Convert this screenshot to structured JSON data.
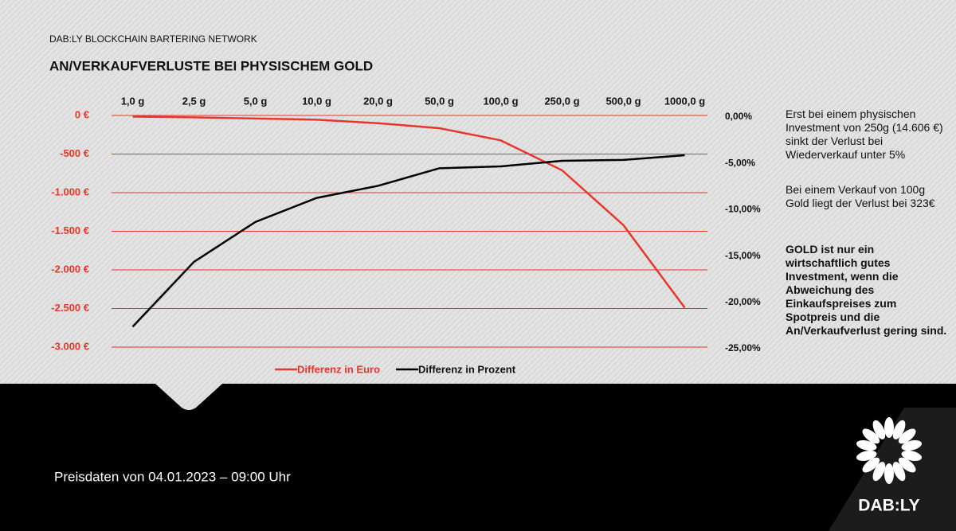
{
  "header": {
    "brand": "DAB:LY BLOCKCHAIN BARTERING NETWORK"
  },
  "chart_data": {
    "type": "line",
    "title": "AN/VERKAUFVERLUSTE BEI PHYSISCHEM GOLD",
    "categories": [
      "1,0 g",
      "2,5 g",
      "5,0 g",
      "10,0 g",
      "20,0 g",
      "50,0 g",
      "100,0 g",
      "250,0 g",
      "500,0 g",
      "1000,0 g"
    ],
    "series": [
      {
        "name": "Differenz in Euro",
        "color": "#e8372a",
        "values": [
          -15,
          -25,
          -40,
          -55,
          -100,
          -165,
          -323,
          -710,
          -1420,
          -2490
        ]
      },
      {
        "name": "Differenz in Prozent",
        "color": "#000000",
        "axis": "y2",
        "values": [
          -22.8,
          -15.8,
          -11.5,
          -8.9,
          -7.6,
          -5.7,
          -5.5,
          -4.9,
          -4.8,
          -4.3
        ]
      }
    ],
    "ylim": [
      -3000,
      0
    ],
    "yticks": [
      {
        "value": 0,
        "label": "0 €"
      },
      {
        "value": -500,
        "label": "-500 €"
      },
      {
        "value": -1000,
        "label": "-1.000 €"
      },
      {
        "value": -1500,
        "label": "-1.500 €"
      },
      {
        "value": -2000,
        "label": "-2.000 €"
      },
      {
        "value": -2500,
        "label": "-2.500 €"
      },
      {
        "value": -3000,
        "label": "-3.000 €"
      }
    ],
    "y2lim": [
      -25,
      0
    ],
    "y2ticks": [
      {
        "value": 0,
        "label": "0,00%"
      },
      {
        "value": -5,
        "label": "-5,00%"
      },
      {
        "value": -10,
        "label": "-10,00%"
      },
      {
        "value": -15,
        "label": "-15,00%"
      },
      {
        "value": -20,
        "label": "-20,00%"
      },
      {
        "value": -25,
        "label": "-25,00%"
      }
    ],
    "grid": true,
    "grid_color": "#e8372a",
    "legend": "bottom"
  },
  "notes": [
    "Erst bei einem physischen Investment von 250g (14.606 €) sinkt der Verlust bei Wiederverkauf unter 5%",
    "Bei einem Verkauf von 100g Gold liegt der Verlust bei 323€",
    "GOLD ist nur ein wirtschaftlich gutes Investment, wenn die Abweichung des Einkaufspreises zum Spotpreis und die An/Verkaufverlust gering sind."
  ],
  "footer": {
    "text": "Preisdaten von 04.01.2023 – 09:00 Uhr"
  },
  "logo": {
    "text": "DAB:LY"
  }
}
